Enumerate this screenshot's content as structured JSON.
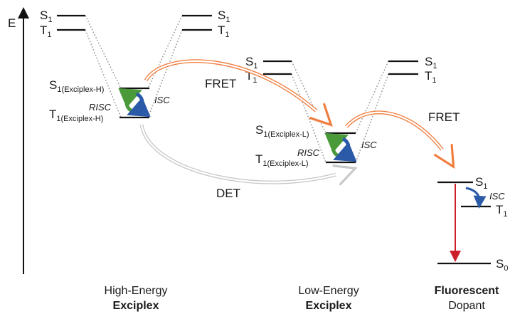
{
  "axis": {
    "label": "E"
  },
  "levels": {
    "donor_left": {
      "s1": "S",
      "s1_sub": "1",
      "t1": "T",
      "t1_sub": "1"
    },
    "donor_right": {
      "s1": "S",
      "s1_sub": "1",
      "t1": "T",
      "t1_sub": "1"
    },
    "exciplex_h": {
      "s1": "S",
      "s1_sub": "1(Exciplex-H)",
      "t1": "T",
      "t1_sub": "1(Exciplex-H)"
    },
    "mid_left": {
      "s1": "S",
      "s1_sub": "1",
      "t1": "T",
      "t1_sub": "1"
    },
    "mid_right": {
      "s1": "S",
      "s1_sub": "1",
      "t1": "T",
      "t1_sub": "1"
    },
    "exciplex_l": {
      "s1": "S",
      "s1_sub": "1(Exciplex-L)",
      "t1": "T",
      "t1_sub": "1(Exciplex-L)"
    },
    "dopant": {
      "s1": "S",
      "s1_sub": "1",
      "t1": "T",
      "t1_sub": "1",
      "s0": "S",
      "s0_sub": "0"
    }
  },
  "processes": {
    "risc_h": "RISC",
    "isc_h": "ISC",
    "risc_l": "RISC",
    "isc_l": "ISC",
    "isc_dopant": "ISC",
    "fret_1": "FRET",
    "fret_2": "FRET",
    "det": "DET"
  },
  "captions": {
    "high_energy": {
      "line1": "High-Energy",
      "line2": "Exciplex"
    },
    "low_energy": {
      "line1": "Low-Energy",
      "line2": "Exciplex"
    },
    "dopant": {
      "line1": "Fluorescent",
      "line2": "Dopant"
    }
  },
  "colors": {
    "fret_arrow": "#f07c3c",
    "det_arrow": "#c8c8c8",
    "risc_arrow": "#4a9a3a",
    "isc_arrow": "#2a5aa8",
    "emission_arrow": "#cc1f2a"
  }
}
